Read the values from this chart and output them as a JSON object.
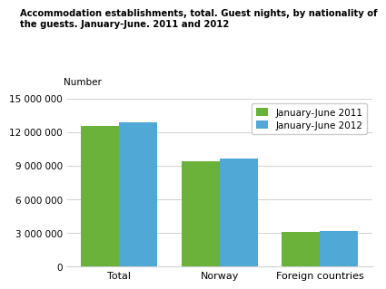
{
  "categories": [
    "Total",
    "Norway",
    "Foreign countries"
  ],
  "values_2011": [
    12500000,
    9350000,
    3100000
  ],
  "values_2012": [
    12900000,
    9600000,
    3200000
  ],
  "color_2011": "#6ab23a",
  "color_2012": "#4fa8d5",
  "legend_labels": [
    "January-June 2011",
    "January-June 2012"
  ],
  "number_label": "Number",
  "ylim": [
    0,
    15000000
  ],
  "yticks": [
    0,
    3000000,
    6000000,
    9000000,
    12000000,
    15000000
  ],
  "title": "Accommodation establishments, total. Guest nights, by nationality of\nthe guests. January-June. 2011 and 2012",
  "background_color": "#ffffff",
  "grid_color": "#d0d0d0"
}
